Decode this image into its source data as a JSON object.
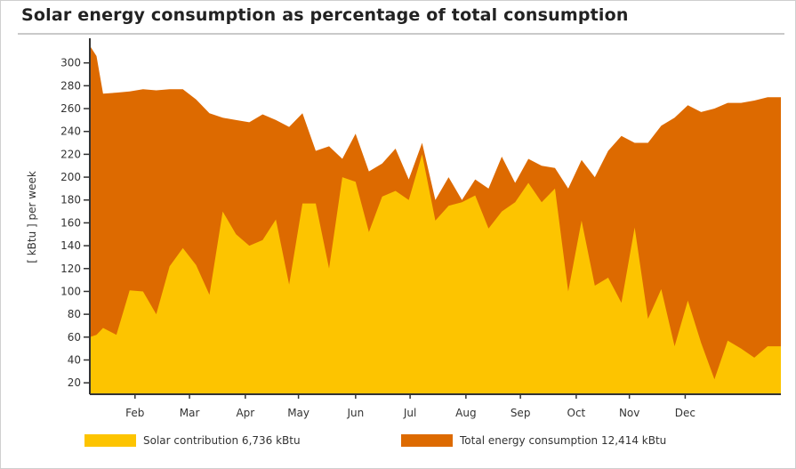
{
  "chart_data": {
    "type": "area",
    "title": "Solar energy consumption as percentage of total consumption",
    "ylabel": "[ kBtu ] per week",
    "xlabel": "",
    "ylim": [
      10,
      320
    ],
    "yticks": [
      20,
      40,
      60,
      80,
      100,
      120,
      140,
      160,
      180,
      200,
      220,
      240,
      260,
      280,
      300
    ],
    "xlim": [
      0,
      52
    ],
    "month_ticks": [
      {
        "label": "Feb",
        "week": 3.4
      },
      {
        "label": "Mar",
        "week": 7.5
      },
      {
        "label": "Apr",
        "week": 11.7
      },
      {
        "label": "May",
        "week": 15.7
      },
      {
        "label": "Jun",
        "week": 20.0
      },
      {
        "label": "Jul",
        "week": 24.1
      },
      {
        "label": "Aug",
        "week": 28.3
      },
      {
        "label": "Sep",
        "week": 32.4
      },
      {
        "label": "Oct",
        "week": 36.6
      },
      {
        "label": "Nov",
        "week": 40.6
      },
      {
        "label": "Dec",
        "week": 44.8
      }
    ],
    "grid": false,
    "legend_position": "bottom",
    "series": [
      {
        "name": "Total energy consumption 12,414 kBtu",
        "color": "#dd6a00",
        "x": [
          0,
          0.5,
          1,
          2,
          3,
          4,
          5,
          6,
          7,
          8,
          9,
          10,
          11,
          12,
          13,
          14,
          15,
          16,
          17,
          18,
          19,
          20,
          21,
          22,
          23,
          24,
          25,
          26,
          27,
          28,
          29,
          30,
          31,
          32,
          33,
          34,
          35,
          36,
          37,
          38,
          39,
          40,
          41,
          42,
          43,
          44,
          45,
          46,
          47,
          48,
          49,
          50,
          51,
          52
        ],
        "values": [
          315,
          306,
          273,
          274,
          275,
          277,
          276,
          277,
          277,
          268,
          256,
          252,
          250,
          248,
          255,
          250,
          244,
          256,
          223,
          227,
          216,
          238,
          205,
          212,
          225,
          198,
          230,
          180,
          200,
          180,
          198,
          190,
          218,
          195,
          216,
          210,
          208,
          190,
          215,
          200,
          223,
          236,
          230,
          230,
          245,
          252,
          263,
          257,
          260,
          265,
          265,
          267,
          270,
          270
        ]
      },
      {
        "name": "Solar contribution 6,736 kBtu",
        "color": "#fdc400",
        "x": [
          0,
          0.5,
          1,
          2,
          3,
          4,
          5,
          6,
          7,
          8,
          9,
          10,
          11,
          12,
          13,
          14,
          15,
          16,
          17,
          18,
          19,
          20,
          21,
          22,
          23,
          24,
          25,
          26,
          27,
          28,
          29,
          30,
          31,
          32,
          33,
          34,
          35,
          36,
          37,
          38,
          39,
          40,
          41,
          42,
          43,
          44,
          45,
          46,
          47,
          48,
          49,
          50,
          51,
          52
        ],
        "values": [
          60,
          62,
          68,
          62,
          101,
          100,
          80,
          122,
          138,
          123,
          97,
          170,
          150,
          140,
          145,
          163,
          106,
          177,
          177,
          120,
          200,
          196,
          152,
          183,
          188,
          180,
          220,
          162,
          175,
          178,
          184,
          155,
          170,
          178,
          195,
          178,
          190,
          100,
          162,
          105,
          112,
          90,
          156,
          76,
          102,
          52,
          92,
          55,
          23,
          57,
          50,
          42,
          52,
          52
        ]
      }
    ]
  }
}
